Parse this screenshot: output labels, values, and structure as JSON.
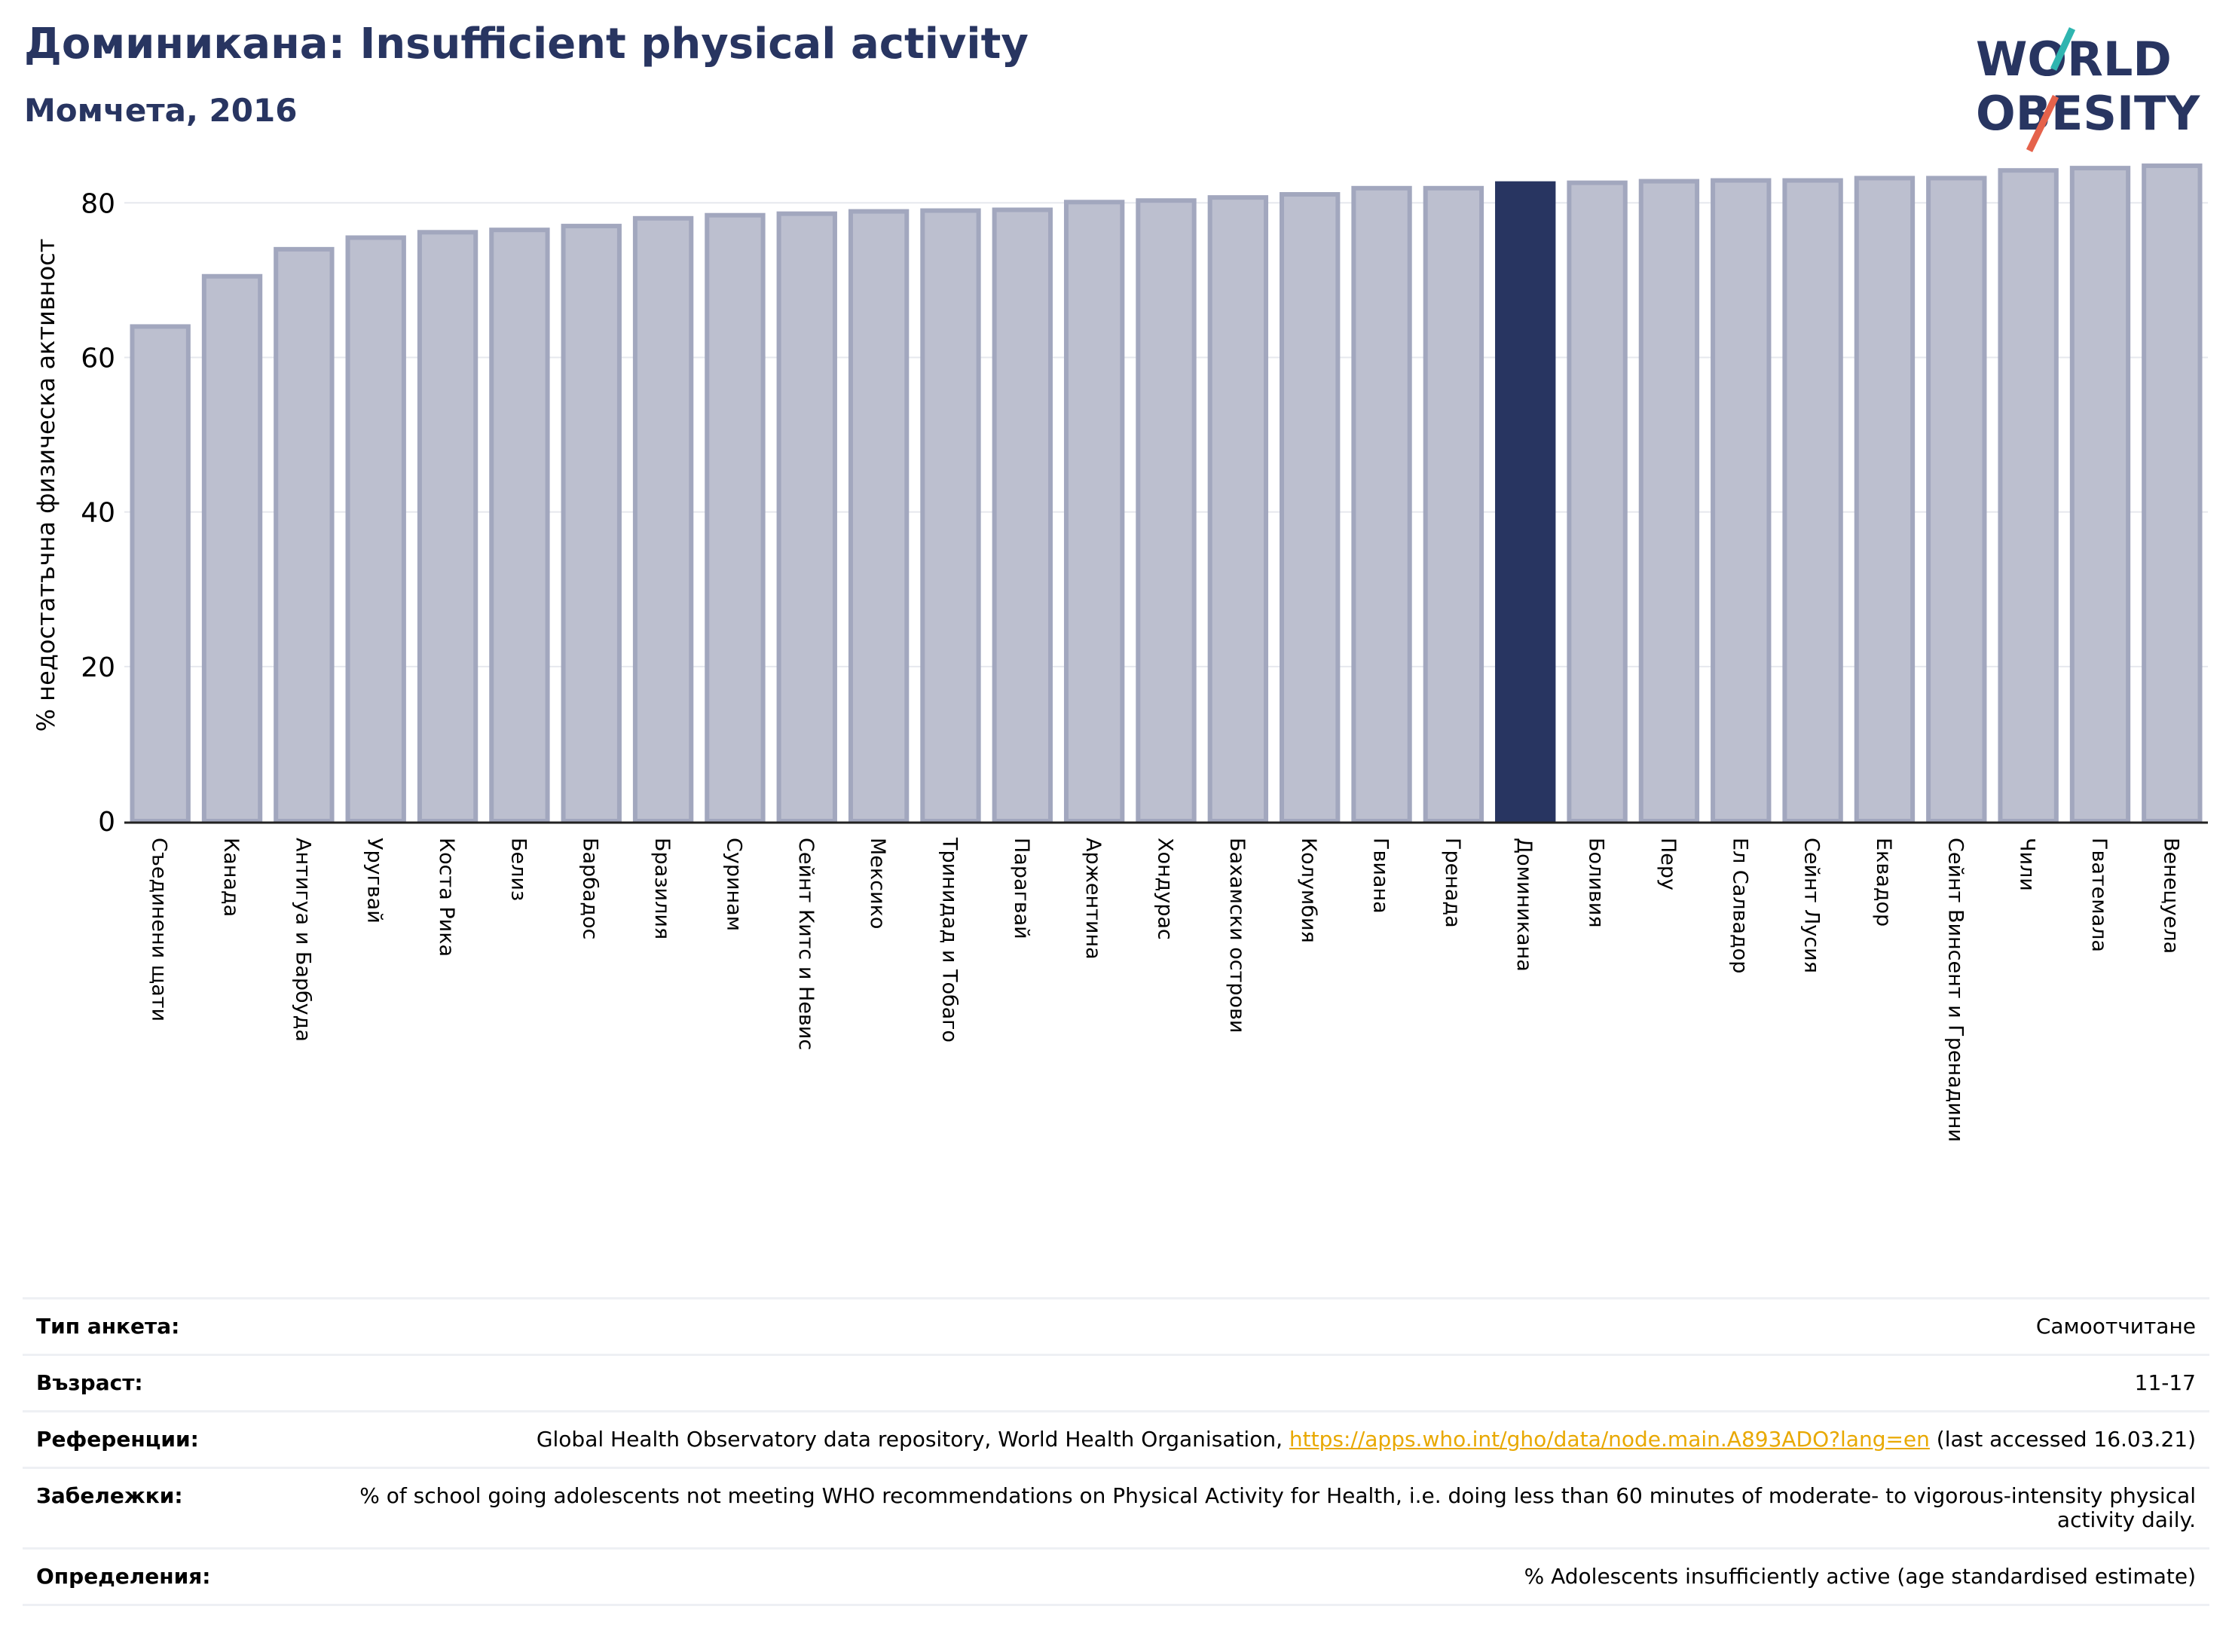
{
  "title": "Доминикана: Insufficient physical activity",
  "subtitle": "Момчета, 2016",
  "logo": {
    "line1": "WORLD",
    "line2": "OBESITY"
  },
  "colors": {
    "bar": "#bcbfcf",
    "bar_edge": "#a2a7be",
    "highlight": "#283561",
    "title": "#283561",
    "link": "#e8a800"
  },
  "chart_data": {
    "type": "bar",
    "ylabel": "% недостатъчна физическа активност",
    "xlabel": "",
    "ylim": [
      0,
      85
    ],
    "yticks": [
      0,
      20,
      40,
      60,
      80
    ],
    "grid": true,
    "highlight": "Доминикана",
    "categories": [
      "Съединени щати",
      "Канада",
      "Антигуа и Барбуда",
      "Уругвай",
      "Коста Рика",
      "Белиз",
      "Барбадос",
      "Бразилия",
      "Суринам",
      "Сейнт Китс и Невис",
      "Мексико",
      "Тринидад и Тобаго",
      "Парагвай",
      "Аржентина",
      "Хондурас",
      "Бахамски острови",
      "Колумбия",
      "Гвиана",
      "Гренада",
      "Доминикана",
      "Боливия",
      "Перу",
      "Ел Салвадор",
      "Сейнт Лусия",
      "Еквадор",
      "Сейнт Винсент и Гренадини",
      "Чили",
      "Гватемала",
      "Венецуела"
    ],
    "values": [
      64.0,
      70.5,
      74.0,
      75.5,
      76.2,
      76.5,
      77.0,
      78.0,
      78.4,
      78.6,
      78.9,
      79.0,
      79.1,
      80.1,
      80.3,
      80.7,
      81.1,
      81.9,
      81.9,
      82.5,
      82.6,
      82.8,
      82.9,
      82.9,
      83.2,
      83.2,
      84.2,
      84.5,
      84.8
    ]
  },
  "meta": [
    {
      "key": "Тип анкета:",
      "value": "Самоотчитане"
    },
    {
      "key": "Възраст:",
      "value": "11-17"
    },
    {
      "key": "Референции:",
      "value_before": "Global Health Observatory data repository, World Health Organisation, ",
      "link": "https://apps.who.int/gho/data/node.main.A893ADO?lang=en",
      "value_after": " (last accessed 16.03.21)"
    },
    {
      "key": "Забележки:",
      "value": "% of school going adolescents not meeting WHO recommendations on Physical Activity for Health, i.e. doing less than 60 minutes of moderate- to vigorous-intensity physical activity daily."
    },
    {
      "key": "Определения:",
      "value": "% Adolescents insufficiently active (age standardised estimate)"
    }
  ]
}
